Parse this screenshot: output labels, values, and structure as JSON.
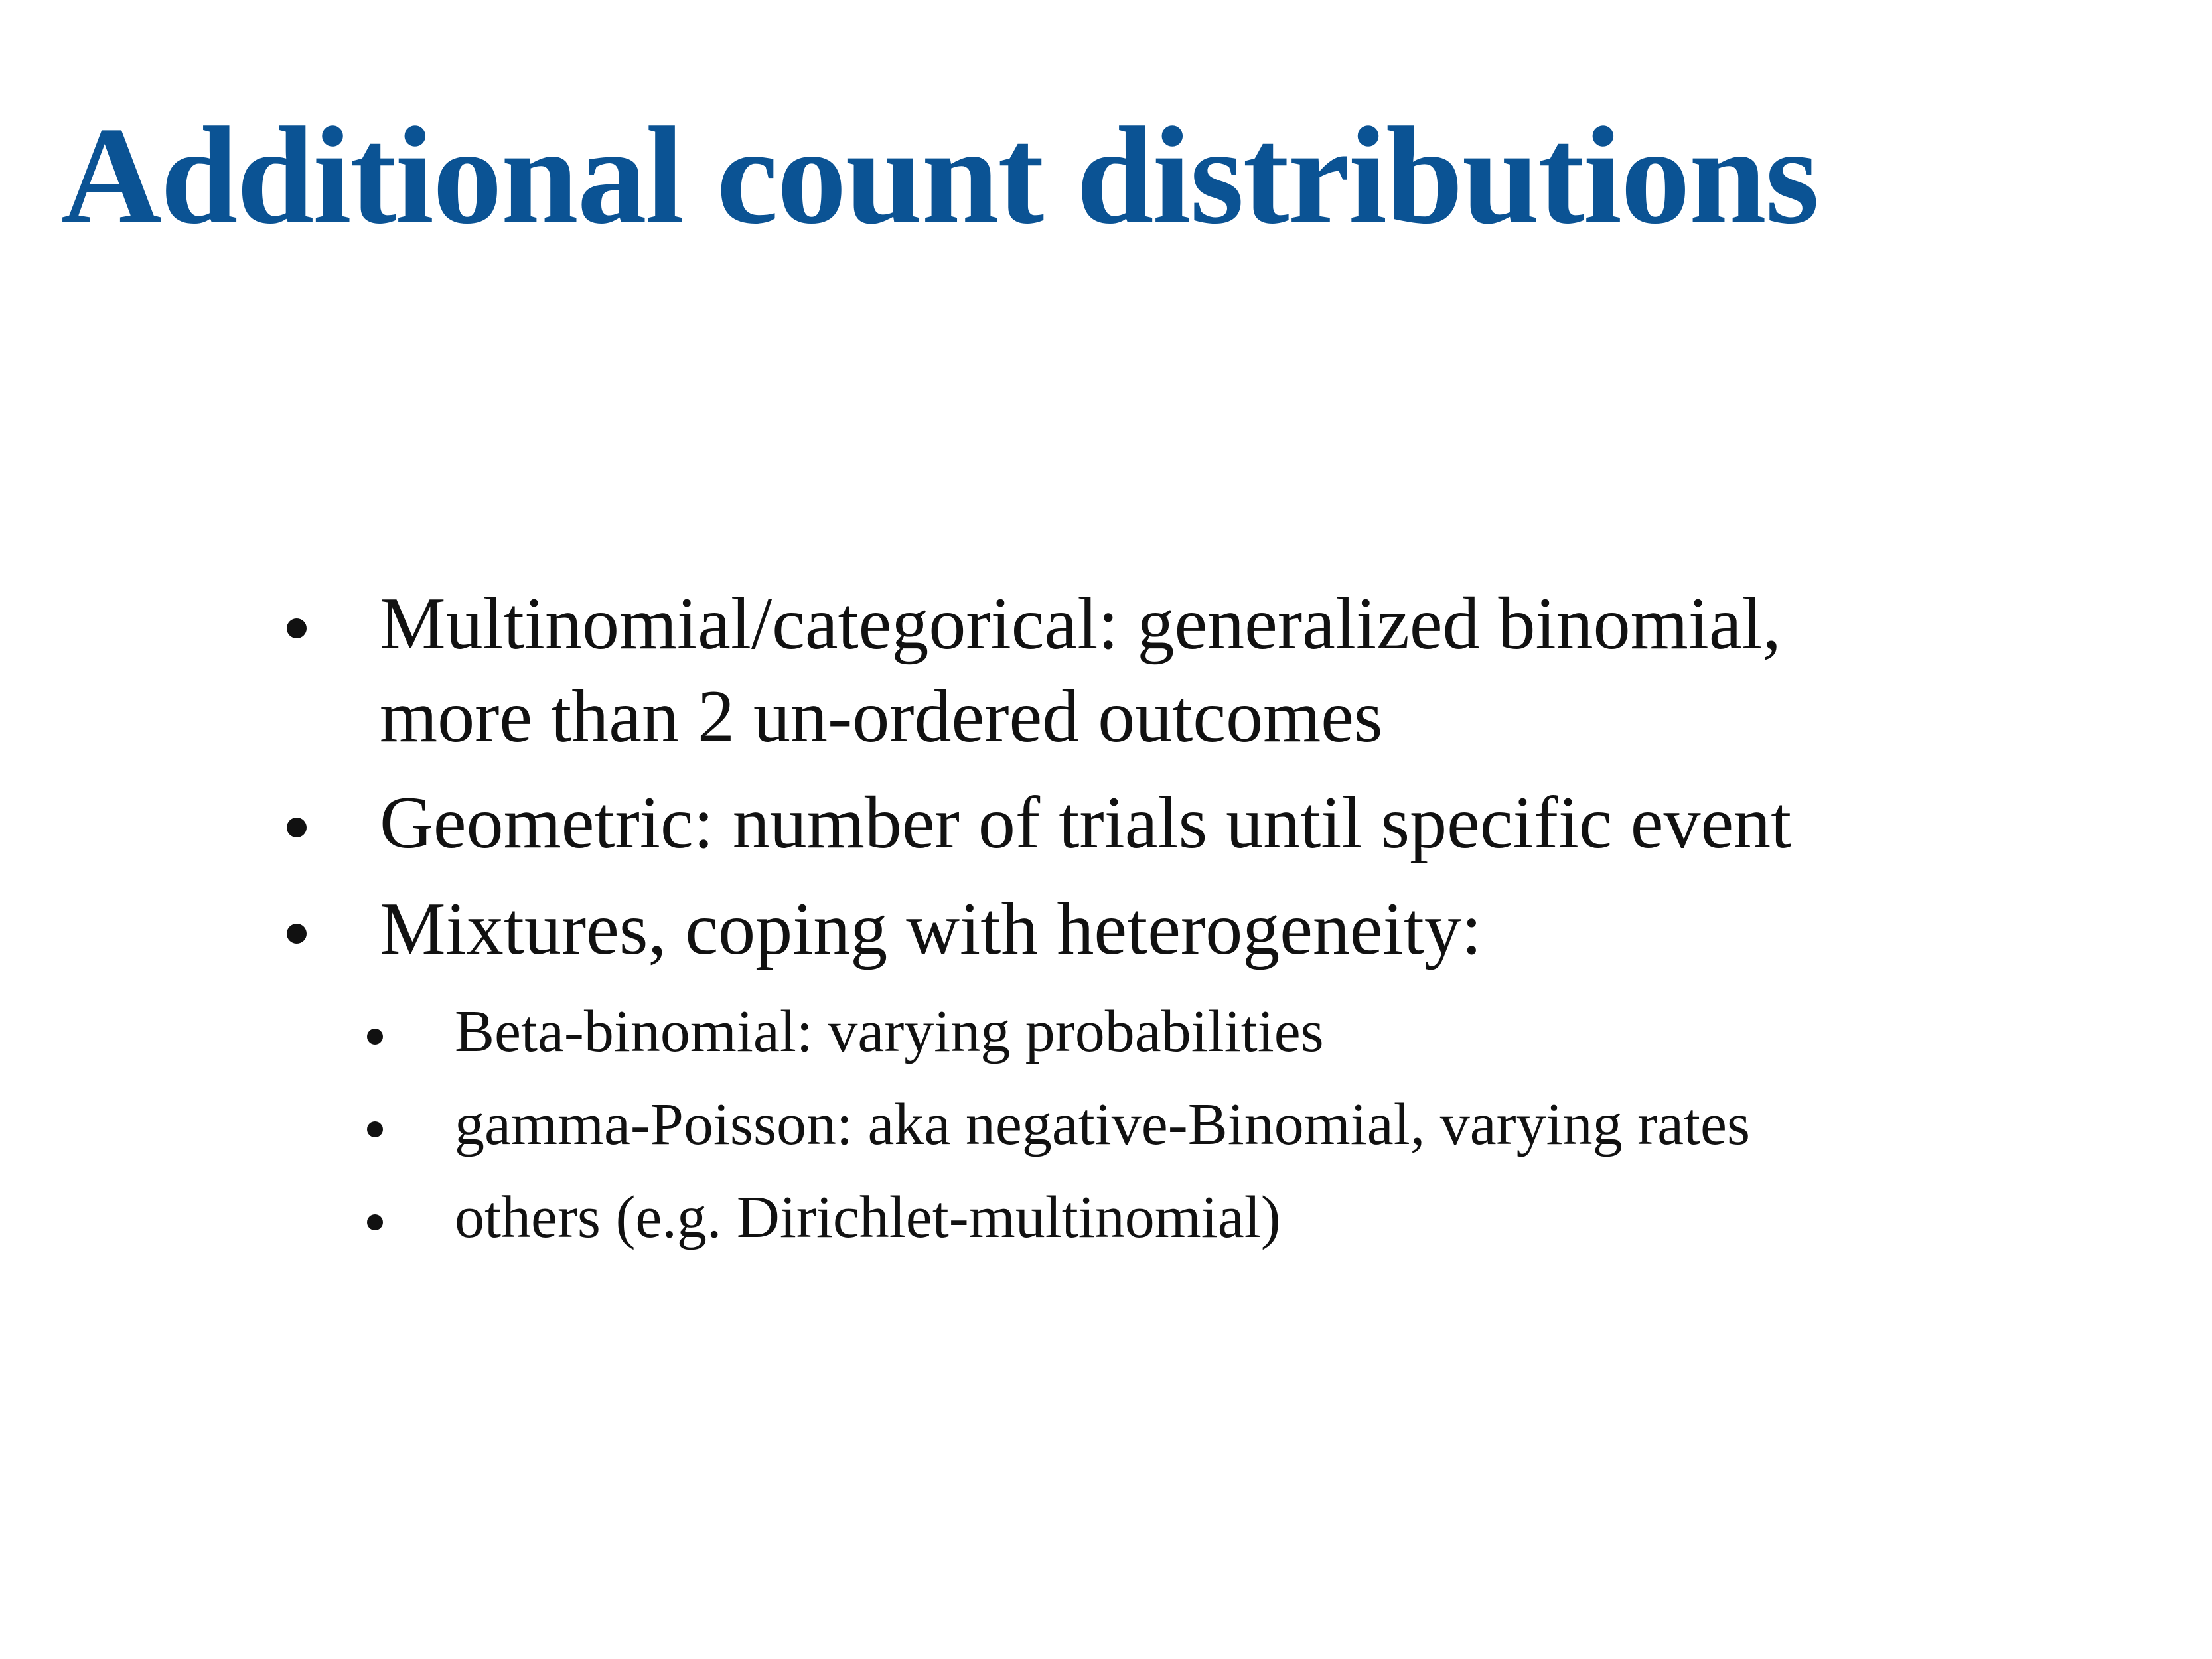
{
  "slide": {
    "title": "Additional count distributions",
    "title_color": "#0b5394",
    "bullets": [
      {
        "lines": [
          "Multinomial/categorical: generalized binomial,",
          "more than 2 un-ordered outcomes"
        ]
      },
      {
        "lines": [
          "Geometric: number of trials until specific event"
        ]
      },
      {
        "lines": [
          "Mixtures, coping with heterogeneity:"
        ],
        "sub_bullets": [
          "Beta-binomial: varying probabilities",
          "gamma-Poisson: aka negative-Binomial, varying rates",
          "others (e.g. Dirichlet-multinomial)"
        ]
      }
    ]
  }
}
